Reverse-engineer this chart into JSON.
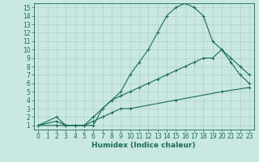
{
  "xlabel": "Humidex (Indice chaleur)",
  "ylabel": "",
  "bg_color": "#c8e8e0",
  "grid_color": "#b0d0c8",
  "line_color": "#1a6b5a",
  "xlim": [
    -0.5,
    23.5
  ],
  "ylim": [
    0.5,
    15.5
  ],
  "xticks": [
    0,
    1,
    2,
    3,
    4,
    5,
    6,
    7,
    8,
    9,
    10,
    11,
    12,
    13,
    14,
    15,
    16,
    17,
    18,
    19,
    20,
    21,
    22,
    23
  ],
  "yticks": [
    1,
    2,
    3,
    4,
    5,
    6,
    7,
    8,
    9,
    10,
    11,
    12,
    13,
    14,
    15
  ],
  "curve1_x": [
    0,
    2,
    3,
    4,
    5,
    6,
    7,
    8,
    9,
    10,
    11,
    12,
    13,
    14,
    15,
    16,
    17,
    18,
    19,
    20,
    21,
    22,
    23
  ],
  "curve1_y": [
    1,
    2,
    1,
    1,
    1,
    1,
    3,
    4,
    5,
    7,
    8.5,
    10,
    12,
    14,
    15,
    15.5,
    15,
    14,
    11,
    10,
    8.5,
    7,
    6
  ],
  "curve2_x": [
    0,
    2,
    3,
    4,
    5,
    6,
    7,
    8,
    9,
    10,
    11,
    12,
    13,
    14,
    15,
    16,
    17,
    18,
    19,
    20,
    21,
    22,
    23
  ],
  "curve2_y": [
    1,
    1.5,
    1,
    1,
    1,
    2,
    3,
    4,
    4.5,
    5,
    5.5,
    6,
    6.5,
    7,
    7.5,
    8,
    8.5,
    9,
    9,
    10,
    9,
    8,
    7
  ],
  "curve3_x": [
    0,
    2,
    3,
    4,
    5,
    6,
    7,
    8,
    9,
    10,
    15,
    20,
    23
  ],
  "curve3_y": [
    1,
    1,
    1,
    1,
    1,
    1.5,
    2,
    2.5,
    3,
    3,
    4,
    5,
    5.5
  ],
  "tick_fontsize": 5.5,
  "xlabel_fontsize": 6.5,
  "lw": 0.8
}
